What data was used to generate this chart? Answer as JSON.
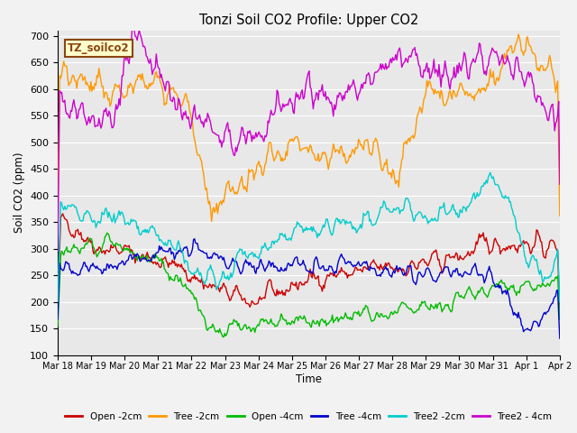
{
  "title": "Tonzi Soil CO2 Profile: Upper CO2",
  "ylabel": "Soil CO2 (ppm)",
  "xlabel": "Time",
  "annotation": "TZ_soilco2",
  "ylim": [
    100,
    710
  ],
  "yticks": [
    100,
    150,
    200,
    250,
    300,
    350,
    400,
    450,
    500,
    550,
    600,
    650,
    700
  ],
  "xtick_labels": [
    "Mar 18",
    "Mar 19",
    "Mar 20",
    "Mar 21",
    "Mar 22",
    "Mar 23",
    "Mar 24",
    "Mar 25",
    "Mar 26",
    "Mar 27",
    "Mar 28",
    "Mar 29",
    "Mar 30",
    "Mar 31",
    "Apr 1",
    "Apr 2"
  ],
  "series": {
    "Open -2cm": {
      "color": "#cc0000",
      "lw": 1.0
    },
    "Tree -2cm": {
      "color": "#ff9900",
      "lw": 1.0
    },
    "Open -4cm": {
      "color": "#00bb00",
      "lw": 1.0
    },
    "Tree -4cm": {
      "color": "#0000cc",
      "lw": 1.0
    },
    "Tree2 -2cm": {
      "color": "#00cccc",
      "lw": 1.0
    },
    "Tree2 - 4cm": {
      "color": "#cc00cc",
      "lw": 1.0
    }
  },
  "bg_color": "#e8e8e8",
  "grid_color": "#ffffff",
  "annotation_bg": "#ffffcc",
  "annotation_fg": "#8B4513"
}
